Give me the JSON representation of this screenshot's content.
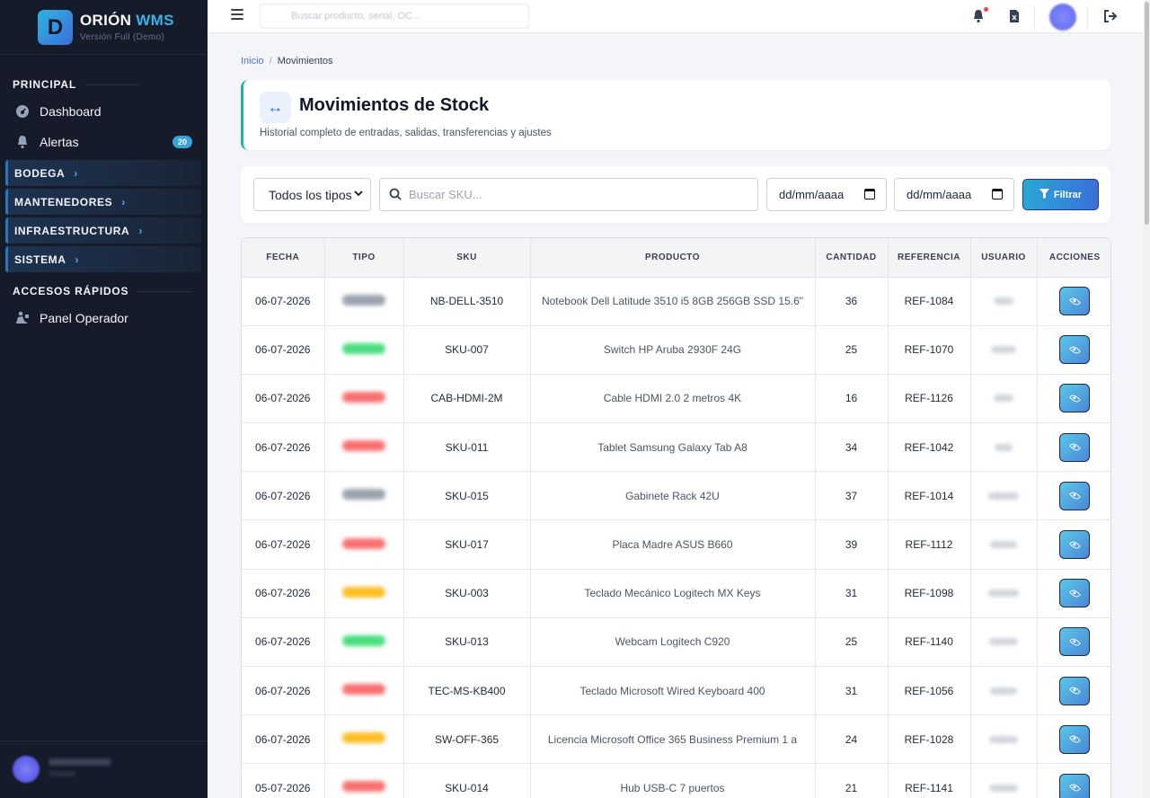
{
  "brand": {
    "logo_letter": "D",
    "name": "ORIÓN",
    "name_accent": "WMS",
    "subtitle": "Versión Full (Demo)"
  },
  "sidebar": {
    "principal_title": "PRINCIPAL",
    "principal_items": [
      {
        "label": "Dashboard",
        "icon": "dashboard-icon"
      },
      {
        "label": "Alertas",
        "icon": "bell-icon",
        "badge": "20"
      }
    ],
    "groups": [
      {
        "label": "BODEGA"
      },
      {
        "label": "MANTENEDORES"
      },
      {
        "label": "INFRAESTRUCTURA"
      },
      {
        "label": "SISTEMA"
      }
    ],
    "quick_title": "ACCESOS RÁPIDOS",
    "quick_items": [
      {
        "label": "Panel Operador",
        "icon": "operator-icon"
      }
    ]
  },
  "topbar": {
    "search_placeholder": "Buscar producto, serial, OC..."
  },
  "breadcrumb": {
    "home": "Inicio",
    "current": "Movimientos"
  },
  "header": {
    "title": "Movimientos de Stock",
    "subtitle": "Historial completo de entradas, salidas, transferencias y ajustes"
  },
  "filters": {
    "type_select": "Todos los tipos",
    "search_placeholder": "Buscar SKU...",
    "date_from": "dd/mm/aaaa",
    "date_to": "dd/mm/aaaa",
    "button": "Filtrar"
  },
  "table": {
    "columns": [
      "FECHA",
      "TIPO",
      "SKU",
      "PRODUCTO",
      "CANTIDAD",
      "REFERENCIA",
      "USUARIO",
      "ACCIONES"
    ],
    "rows": [
      {
        "fecha": "06-07-2026",
        "tipo_color": "#9ca3af",
        "sku": "NB-DELL-3510",
        "producto": "Notebook Dell Latitude 3510 i5 8GB 256GB SSD 15.6\"",
        "cantidad": "36",
        "referencia": "REF-1084"
      },
      {
        "fecha": "06-07-2026",
        "tipo_color": "#4ade80",
        "sku": "SKU-007",
        "producto": "Switch HP Aruba 2930F 24G",
        "cantidad": "25",
        "referencia": "REF-1070"
      },
      {
        "fecha": "06-07-2026",
        "tipo_color": "#f87171",
        "sku": "CAB-HDMI-2M",
        "producto": "Cable HDMI 2.0 2 metros 4K",
        "cantidad": "16",
        "referencia": "REF-1126"
      },
      {
        "fecha": "06-07-2026",
        "tipo_color": "#f87171",
        "sku": "SKU-011",
        "producto": "Tablet Samsung Galaxy Tab A8",
        "cantidad": "34",
        "referencia": "REF-1042"
      },
      {
        "fecha": "06-07-2026",
        "tipo_color": "#9ca3af",
        "sku": "SKU-015",
        "producto": "Gabinete Rack 42U",
        "cantidad": "37",
        "referencia": "REF-1014"
      },
      {
        "fecha": "06-07-2026",
        "tipo_color": "#f87171",
        "sku": "SKU-017",
        "producto": "Placa Madre ASUS B660",
        "cantidad": "39",
        "referencia": "REF-1112"
      },
      {
        "fecha": "06-07-2026",
        "tipo_color": "#fbbf24",
        "sku": "SKU-003",
        "producto": "Teclado Mecánico Logitech MX Keys",
        "cantidad": "31",
        "referencia": "REF-1098"
      },
      {
        "fecha": "06-07-2026",
        "tipo_color": "#4ade80",
        "sku": "SKU-013",
        "producto": "Webcam Logitech C920",
        "cantidad": "25",
        "referencia": "REF-1140"
      },
      {
        "fecha": "06-07-2026",
        "tipo_color": "#f87171",
        "sku": "TEC-MS-KB400",
        "producto": "Teclado Microsoft Wired Keyboard 400",
        "cantidad": "31",
        "referencia": "REF-1056"
      },
      {
        "fecha": "06-07-2026",
        "tipo_color": "#fbbf24",
        "sku": "SW-OFF-365",
        "producto": "Licencia Microsoft Office 365 Business Premium 1 a",
        "cantidad": "24",
        "referencia": "REF-1028"
      },
      {
        "fecha": "05-07-2026",
        "tipo_color": "#f87171",
        "sku": "SKU-014",
        "producto": "Hub USB-C 7 puertos",
        "cantidad": "21",
        "referencia": "REF-1141"
      }
    ]
  }
}
